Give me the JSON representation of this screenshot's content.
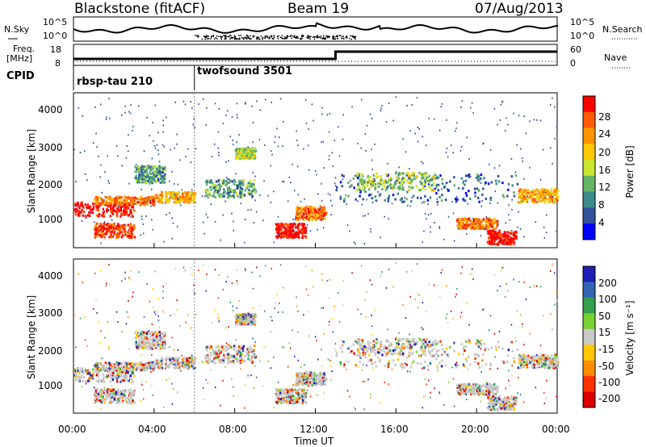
{
  "header": {
    "station": "Blackstone (fitACF)",
    "beam": "Beam 19",
    "date": "07/Aug/2013"
  },
  "panels": {
    "noise": {
      "left_label": "N.Sky",
      "right_label": "N.Search",
      "left_ticks": [
        "10^5",
        "10^0"
      ],
      "right_ticks": [
        "10^5",
        "10^0"
      ]
    },
    "freq": {
      "left_label_1": "Freq.",
      "left_label_2": "[MHz]",
      "left_ticks": [
        "18",
        "8"
      ],
      "right_label": "Nave",
      "right_ticks": [
        "60",
        "0"
      ]
    },
    "cpid": {
      "label": "CPID",
      "segments": [
        "rbsp-tau 210",
        "twofsound 3501"
      ]
    }
  },
  "chart_data": [
    {
      "type": "heatmap",
      "name": "power",
      "ylabel": "Slant Range [km]",
      "y_ticks": [
        "1000",
        "2000",
        "3000",
        "4000"
      ],
      "ylim": [
        180,
        4600
      ],
      "colorbar": {
        "label": "Power [dB]",
        "ticks": [
          "28",
          "24",
          "20",
          "16",
          "12",
          "8",
          "4"
        ],
        "colors": [
          "#ff0000",
          "#ff5a00",
          "#ff9600",
          "#ffc800",
          "#c8e632",
          "#64b464",
          "#3c8c8c",
          "#32509b",
          "#0000ff"
        ]
      }
    },
    {
      "type": "heatmap",
      "name": "velocity",
      "ylabel": "Slant Range [km]",
      "y_ticks": [
        "1000",
        "2000",
        "3000",
        "4000"
      ],
      "ylim": [
        180,
        4600
      ],
      "colorbar": {
        "label": "Velocity [m s⁻¹]",
        "ticks": [
          "200",
          "100",
          "50",
          "15",
          "-15",
          "-50",
          "-100",
          "-200"
        ],
        "colors": [
          "#1e1eb4",
          "#3264b4",
          "#32a050",
          "#78d232",
          "#c8c8c8",
          "#ffc800",
          "#ff8c00",
          "#ff3200",
          "#dc0000"
        ]
      }
    }
  ],
  "x_axis": {
    "label": "Time UT",
    "ticks": [
      "00:00",
      "04:00",
      "08:00",
      "12:00",
      "16:00",
      "20:00",
      "00:00"
    ]
  }
}
